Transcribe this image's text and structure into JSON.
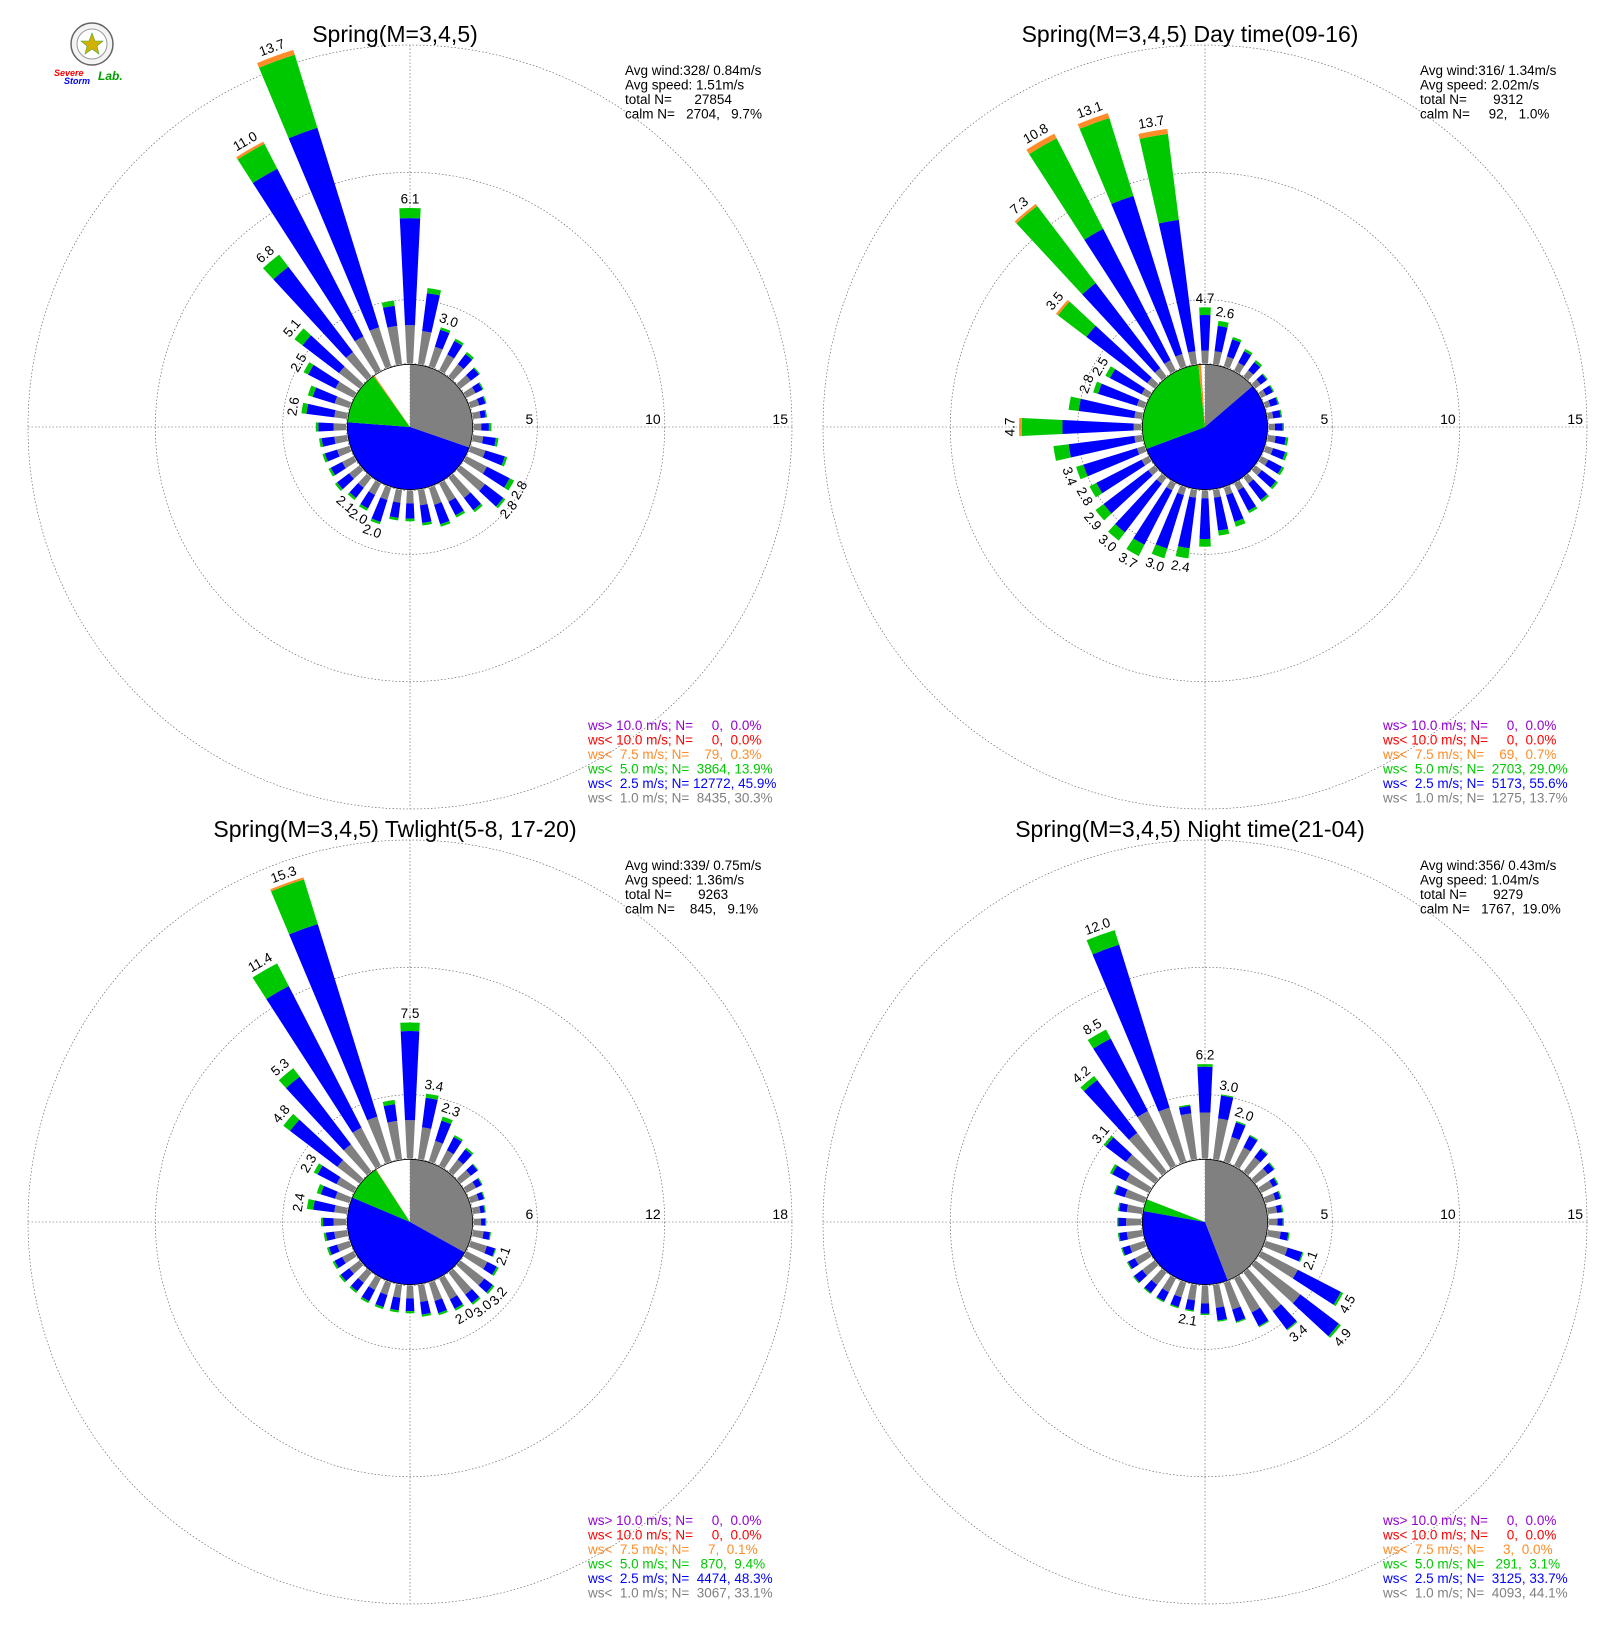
{
  "colors": {
    "gt10": "#9400d3",
    "lt10": "#ff0000",
    "lt7_5": "#ff8c29",
    "lt5": "#00c800",
    "lt2_5": "#0000ff",
    "lt1": "#808080",
    "grid": "#555555"
  },
  "logo": {
    "word1": "Severe",
    "word2": "Storm",
    "word3": "Lab."
  },
  "chart_data": [
    {
      "type": "windrose",
      "title": "Spring(M=3,4,5)",
      "stats": {
        "avg_wind": "Avg wind:328/ 0.84m/s",
        "avg_speed": "Avg speed: 1.51m/s",
        "total": "total N=      27854",
        "calm": "calm N=   2704,   9.7%"
      },
      "rings": [
        5,
        10,
        15
      ],
      "ring_labels": [
        "5",
        "10",
        "15"
      ],
      "base_radius": 2.5,
      "calm_pie": [
        {
          "cls": "lt1",
          "pct": 30.3
        },
        {
          "cls": "lt2_5",
          "pct": 45.9
        },
        {
          "cls": "lt5",
          "pct": 13.9
        },
        {
          "cls": "lt7_5",
          "pct": 0.3
        },
        {
          "cls": "lt10",
          "pct": 0.0
        },
        {
          "cls": "gt10",
          "pct": 0.0
        }
      ],
      "directions": [
        0,
        10,
        20,
        30,
        40,
        50,
        60,
        70,
        80,
        90,
        100,
        110,
        120,
        130,
        140,
        150,
        160,
        170,
        180,
        190,
        200,
        210,
        220,
        230,
        240,
        250,
        260,
        270,
        280,
        290,
        300,
        310,
        320,
        330,
        340,
        350
      ],
      "gray": [
        1.5,
        1.3,
        0.8,
        0.7,
        0.6,
        0.5,
        0.4,
        0.35,
        0.3,
        0.3,
        0.4,
        0.6,
        0.9,
        1.2,
        1.0,
        0.8,
        0.7,
        0.6,
        0.5,
        0.5,
        0.5,
        0.5,
        0.5,
        0.5,
        0.5,
        0.5,
        0.5,
        0.5,
        0.5,
        0.6,
        0.8,
        1.0,
        1.2,
        1.5,
        1.6,
        1.5
      ],
      "blue": [
        4.2,
        1.5,
        0.7,
        0.6,
        0.5,
        0.4,
        0.3,
        0.25,
        0.2,
        0.3,
        0.5,
        0.8,
        1.0,
        0.9,
        0.6,
        0.6,
        0.8,
        0.7,
        0.6,
        0.6,
        0.9,
        0.6,
        0.5,
        0.6,
        0.5,
        0.5,
        0.5,
        0.6,
        1.1,
        0.9,
        1.2,
        1.8,
        4.2,
        7.4,
        8.2,
        0.8
      ],
      "green": [
        0.4,
        0.2,
        0.1,
        0.1,
        0.1,
        0.05,
        0.05,
        0.05,
        0.05,
        0.1,
        0.1,
        0.1,
        0.2,
        0.1,
        0.1,
        0.1,
        0.1,
        0.1,
        0.1,
        0.1,
        0.1,
        0.1,
        0.1,
        0.1,
        0.1,
        0.1,
        0.1,
        0.1,
        0.2,
        0.2,
        0.2,
        0.4,
        0.6,
        1.1,
        3.0,
        0.2
      ],
      "orange": [
        0,
        0,
        0,
        0,
        0,
        0,
        0,
        0,
        0,
        0,
        0,
        0,
        0,
        0,
        0,
        0,
        0,
        0,
        0,
        0,
        0,
        0,
        0,
        0,
        0,
        0,
        0,
        0,
        0,
        0,
        0,
        0,
        0,
        0.1,
        0.2,
        0
      ],
      "bar_labels": [
        {
          "dir": 0,
          "text": "6.1"
        },
        {
          "dir": 20,
          "text": "3.0"
        },
        {
          "dir": 120,
          "text": "2.8"
        },
        {
          "dir": 130,
          "text": "2.8"
        },
        {
          "dir": 200,
          "text": "2.0"
        },
        {
          "dir": 210,
          "text": "2.0"
        },
        {
          "dir": 220,
          "text": "2.1"
        },
        {
          "dir": 280,
          "text": "2.6"
        },
        {
          "dir": 300,
          "text": "2.5"
        },
        {
          "dir": 310,
          "text": "5.1"
        },
        {
          "dir": 320,
          "text": "6.8"
        },
        {
          "dir": 330,
          "text": "11.0"
        },
        {
          "dir": 340,
          "text": "13.7"
        }
      ],
      "legend": [
        {
          "cls": "gt10",
          "text": "ws> 10.0 m/s; N=     0,  0.0%"
        },
        {
          "cls": "lt10",
          "text": "ws< 10.0 m/s; N=     0,  0.0%"
        },
        {
          "cls": "lt7_5",
          "text": "ws<  7.5 m/s; N=    79,  0.3%"
        },
        {
          "cls": "lt5",
          "text": "ws<  5.0 m/s; N=  3864, 13.9%"
        },
        {
          "cls": "lt2_5",
          "text": "ws<  2.5 m/s; N= 12772, 45.9%"
        },
        {
          "cls": "lt1",
          "text": "ws<  1.0 m/s; N=  8435, 30.3%"
        }
      ]
    },
    {
      "type": "windrose",
      "title": "Spring(M=3,4,5) Day time(09-16)",
      "stats": {
        "avg_wind": "Avg wind:316/ 1.34m/s",
        "avg_speed": "Avg speed: 2.02m/s",
        "total": "total N=       9312",
        "calm": "calm N=     92,   1.0%"
      },
      "rings": [
        5,
        10,
        15
      ],
      "ring_labels": [
        "5",
        "10",
        "15"
      ],
      "base_radius": 2.5,
      "calm_pie": [
        {
          "cls": "lt1",
          "pct": 13.7
        },
        {
          "cls": "lt2_5",
          "pct": 55.6
        },
        {
          "cls": "lt5",
          "pct": 29.0
        },
        {
          "cls": "lt7_5",
          "pct": 0.7
        },
        {
          "cls": "lt10",
          "pct": 0.0
        },
        {
          "cls": "gt10",
          "pct": 0.0
        }
      ],
      "directions": [
        0,
        10,
        20,
        30,
        40,
        50,
        60,
        70,
        80,
        90,
        100,
        110,
        120,
        130,
        140,
        150,
        160,
        170,
        180,
        190,
        200,
        210,
        220,
        230,
        240,
        250,
        260,
        270,
        280,
        290,
        300,
        310,
        320,
        330,
        340,
        350
      ],
      "gray": [
        0.5,
        0.5,
        0.4,
        0.35,
        0.3,
        0.25,
        0.2,
        0.2,
        0.2,
        0.25,
        0.3,
        0.3,
        0.3,
        0.3,
        0.3,
        0.3,
        0.3,
        0.3,
        0.3,
        0.3,
        0.3,
        0.3,
        0.3,
        0.3,
        0.3,
        0.3,
        0.3,
        0.3,
        0.3,
        0.3,
        0.3,
        0.35,
        0.4,
        0.45,
        0.5,
        0.5
      ],
      "blue": [
        1.4,
        1.0,
        0.7,
        0.5,
        0.4,
        0.3,
        0.3,
        0.3,
        0.3,
        0.3,
        0.4,
        0.5,
        0.6,
        0.7,
        0.8,
        0.9,
        1.1,
        1.3,
        1.6,
        2.0,
        2.2,
        2.4,
        2.4,
        2.2,
        2.0,
        2.2,
        2.6,
        2.8,
        2.2,
        1.6,
        1.4,
        3.0,
        4.2,
        5.8,
        6.5,
        5.2
      ],
      "green": [
        0.3,
        0.2,
        0.1,
        0.1,
        0.1,
        0.05,
        0.05,
        0.05,
        0.05,
        0.05,
        0.1,
        0.1,
        0.1,
        0.1,
        0.1,
        0.1,
        0.2,
        0.2,
        0.3,
        0.4,
        0.4,
        0.5,
        0.4,
        0.4,
        0.3,
        0.3,
        0.6,
        1.6,
        0.4,
        0.2,
        0.2,
        1.4,
        3.8,
        4.0,
        3.2,
        3.4
      ],
      "orange": [
        0,
        0,
        0,
        0,
        0,
        0,
        0,
        0,
        0,
        0,
        0,
        0,
        0,
        0,
        0,
        0,
        0,
        0,
        0,
        0,
        0,
        0,
        0,
        0,
        0,
        0,
        0,
        0.1,
        0,
        0,
        0,
        0.1,
        0.1,
        0.2,
        0.2,
        0.2
      ],
      "bar_labels": [
        {
          "dir": 0,
          "text": "4.7"
        },
        {
          "dir": 10,
          "text": "2.6"
        },
        {
          "dir": 190,
          "text": "2.4"
        },
        {
          "dir": 200,
          "text": "3.0"
        },
        {
          "dir": 210,
          "text": "3.7"
        },
        {
          "dir": 220,
          "text": "3.0"
        },
        {
          "dir": 230,
          "text": "2.9"
        },
        {
          "dir": 240,
          "text": "2.8"
        },
        {
          "dir": 250,
          "text": "3.4"
        },
        {
          "dir": 270,
          "text": "4.7"
        },
        {
          "dir": 290,
          "text": "2.8"
        },
        {
          "dir": 300,
          "text": "2.5"
        },
        {
          "dir": 310,
          "text": "3.5"
        },
        {
          "dir": 320,
          "text": "7.3"
        },
        {
          "dir": 330,
          "text": "10.8"
        },
        {
          "dir": 340,
          "text": "13.1"
        },
        {
          "dir": 350,
          "text": "13.7"
        }
      ],
      "legend": [
        {
          "cls": "gt10",
          "text": "ws> 10.0 m/s; N=     0,  0.0%"
        },
        {
          "cls": "lt10",
          "text": "ws< 10.0 m/s; N=     0,  0.0%"
        },
        {
          "cls": "lt7_5",
          "text": "ws<  7.5 m/s; N=    69,  0.7%"
        },
        {
          "cls": "lt5",
          "text": "ws<  5.0 m/s; N=  2703, 29.0%"
        },
        {
          "cls": "lt2_5",
          "text": "ws<  2.5 m/s; N=  5173, 55.6%"
        },
        {
          "cls": "lt1",
          "text": "ws<  1.0 m/s; N=  1275, 13.7%"
        }
      ]
    },
    {
      "type": "windrose",
      "title": "Spring(M=3,4,5) Twlight(5-8, 17-20)",
      "stats": {
        "avg_wind": "Avg wind:339/ 0.75m/s",
        "avg_speed": "Avg speed: 1.36m/s",
        "total": "total N=       9263",
        "calm": "calm N=    845,   9.1%"
      },
      "rings": [
        6,
        12,
        18
      ],
      "ring_labels": [
        "6",
        "12",
        "18"
      ],
      "base_radius": 3,
      "calm_pie": [
        {
          "cls": "lt1",
          "pct": 33.1
        },
        {
          "cls": "lt2_5",
          "pct": 48.3
        },
        {
          "cls": "lt5",
          "pct": 9.4
        },
        {
          "cls": "lt7_5",
          "pct": 0.1
        },
        {
          "cls": "lt10",
          "pct": 0.0
        },
        {
          "cls": "gt10",
          "pct": 0.0
        }
      ],
      "directions": [
        0,
        10,
        20,
        30,
        40,
        50,
        60,
        70,
        80,
        90,
        100,
        110,
        120,
        130,
        140,
        150,
        160,
        170,
        180,
        190,
        200,
        210,
        220,
        230,
        240,
        250,
        260,
        270,
        280,
        290,
        300,
        310,
        320,
        330,
        340,
        350
      ],
      "gray": [
        1.8,
        1.5,
        1.0,
        0.8,
        0.7,
        0.6,
        0.5,
        0.4,
        0.35,
        0.35,
        0.5,
        0.8,
        1.1,
        1.4,
        1.3,
        1.1,
        0.9,
        0.8,
        0.6,
        0.6,
        0.6,
        0.6,
        0.6,
        0.6,
        0.6,
        0.6,
        0.6,
        0.6,
        0.6,
        0.7,
        0.9,
        1.3,
        1.6,
        2.0,
        2.2,
        1.8
      ],
      "blue": [
        4.2,
        1.4,
        1.0,
        0.7,
        0.6,
        0.4,
        0.3,
        0.25,
        0.2,
        0.2,
        0.3,
        0.4,
        0.5,
        0.5,
        0.5,
        0.5,
        0.6,
        0.6,
        0.6,
        0.6,
        0.6,
        0.6,
        0.5,
        0.5,
        0.4,
        0.4,
        0.4,
        0.5,
        1.0,
        0.7,
        1.0,
        2.8,
        4.0,
        7.5,
        9.5,
        0.8
      ],
      "green": [
        0.4,
        0.2,
        0.2,
        0.1,
        0.1,
        0.05,
        0.05,
        0.05,
        0.05,
        0.05,
        0.05,
        0.05,
        0.1,
        0.1,
        0.1,
        0.1,
        0.1,
        0.1,
        0.1,
        0.1,
        0.1,
        0.1,
        0.1,
        0.1,
        0.1,
        0.1,
        0.1,
        0.1,
        0.3,
        0.2,
        0.2,
        0.4,
        0.5,
        1.2,
        2.2,
        0.2
      ],
      "orange": [
        0,
        0,
        0,
        0,
        0,
        0,
        0,
        0,
        0,
        0,
        0,
        0,
        0,
        0,
        0,
        0,
        0,
        0,
        0,
        0,
        0,
        0,
        0,
        0,
        0,
        0,
        0,
        0,
        0,
        0,
        0,
        0,
        0,
        0,
        0.1,
        0
      ],
      "bar_labels": [
        {
          "dir": 0,
          "text": "7.5"
        },
        {
          "dir": 10,
          "text": "3.4"
        },
        {
          "dir": 20,
          "text": "2.3"
        },
        {
          "dir": 110,
          "text": "2.1"
        },
        {
          "dir": 130,
          "text": "3.2"
        },
        {
          "dir": 140,
          "text": "3.0"
        },
        {
          "dir": 150,
          "text": "2.0"
        },
        {
          "dir": 280,
          "text": "2.4"
        },
        {
          "dir": 300,
          "text": "2.3"
        },
        {
          "dir": 310,
          "text": "4.8"
        },
        {
          "dir": 320,
          "text": "5.3"
        },
        {
          "dir": 330,
          "text": "11.4"
        },
        {
          "dir": 340,
          "text": "15.3"
        }
      ],
      "legend": [
        {
          "cls": "gt10",
          "text": "ws> 10.0 m/s; N=     0,  0.0%"
        },
        {
          "cls": "lt10",
          "text": "ws< 10.0 m/s; N=     0,  0.0%"
        },
        {
          "cls": "lt7_5",
          "text": "ws<  7.5 m/s; N=     7,  0.1%"
        },
        {
          "cls": "lt5",
          "text": "ws<  5.0 m/s; N=   870,  9.4%"
        },
        {
          "cls": "lt2_5",
          "text": "ws<  2.5 m/s; N=  4474, 48.3%"
        },
        {
          "cls": "lt1",
          "text": "ws<  1.0 m/s; N=  3067, 33.1%"
        }
      ]
    },
    {
      "type": "windrose",
      "title": "Spring(M=3,4,5) Night time(21-04)",
      "stats": {
        "avg_wind": "Avg wind:356/ 0.43m/s",
        "avg_speed": "Avg speed: 1.04m/s",
        "total": "total N=       9279",
        "calm": "calm N=   1767,  19.0%"
      },
      "rings": [
        5,
        10,
        15
      ],
      "ring_labels": [
        "5",
        "10",
        "15"
      ],
      "base_radius": 2.5,
      "calm_pie": [
        {
          "cls": "lt1",
          "pct": 44.1
        },
        {
          "cls": "lt2_5",
          "pct": 33.7
        },
        {
          "cls": "lt5",
          "pct": 3.1
        },
        {
          "cls": "lt7_5",
          "pct": 0.0
        },
        {
          "cls": "lt10",
          "pct": 0.0
        },
        {
          "cls": "gt10",
          "pct": 0.0
        }
      ],
      "directions": [
        0,
        10,
        20,
        30,
        40,
        50,
        60,
        70,
        80,
        90,
        100,
        110,
        120,
        130,
        140,
        150,
        160,
        170,
        180,
        190,
        200,
        210,
        220,
        230,
        240,
        250,
        260,
        270,
        280,
        290,
        300,
        310,
        320,
        330,
        340,
        350
      ],
      "gray": [
        1.8,
        1.6,
        1.0,
        0.8,
        0.7,
        0.6,
        0.5,
        0.4,
        0.35,
        0.35,
        0.5,
        0.9,
        1.6,
        2.2,
        1.9,
        1.5,
        1.1,
        0.9,
        0.7,
        0.6,
        0.6,
        0.6,
        0.6,
        0.6,
        0.6,
        0.6,
        0.6,
        0.6,
        0.6,
        0.8,
        1.0,
        1.4,
        1.9,
        2.4,
        2.2,
        1.8
      ],
      "blue": [
        1.8,
        0.9,
        0.6,
        0.5,
        0.4,
        0.3,
        0.2,
        0.2,
        0.2,
        0.2,
        0.3,
        0.6,
        1.9,
        1.9,
        0.9,
        0.6,
        0.5,
        0.5,
        0.4,
        0.4,
        0.4,
        0.4,
        0.4,
        0.4,
        0.3,
        0.3,
        0.3,
        0.3,
        0.3,
        0.4,
        0.6,
        1.0,
        2.6,
        3.2,
        6.7,
        0.3
      ],
      "green": [
        0.1,
        0.05,
        0.05,
        0.05,
        0.05,
        0.05,
        0.05,
        0.05,
        0.05,
        0.05,
        0.05,
        0.05,
        0.1,
        0.1,
        0.05,
        0.05,
        0.05,
        0.05,
        0.05,
        0.05,
        0.05,
        0.05,
        0.05,
        0.05,
        0.05,
        0.05,
        0.05,
        0.05,
        0.05,
        0.05,
        0.1,
        0.1,
        0.2,
        0.4,
        0.6,
        0.05
      ],
      "orange": [
        0,
        0,
        0,
        0,
        0,
        0,
        0,
        0,
        0,
        0,
        0,
        0,
        0,
        0,
        0,
        0,
        0,
        0,
        0,
        0,
        0,
        0,
        0,
        0,
        0,
        0,
        0,
        0,
        0,
        0,
        0,
        0,
        0,
        0,
        0,
        0
      ],
      "bar_labels": [
        {
          "dir": 0,
          "text": "6.2"
        },
        {
          "dir": 10,
          "text": "3.0"
        },
        {
          "dir": 20,
          "text": "2.0"
        },
        {
          "dir": 110,
          "text": "2.1"
        },
        {
          "dir": 120,
          "text": "4.5"
        },
        {
          "dir": 130,
          "text": "4.9"
        },
        {
          "dir": 140,
          "text": "3.4"
        },
        {
          "dir": 190,
          "text": "2.1"
        },
        {
          "dir": 310,
          "text": "3.1"
        },
        {
          "dir": 320,
          "text": "4.2"
        },
        {
          "dir": 330,
          "text": "8.5"
        },
        {
          "dir": 340,
          "text": "12.0"
        }
      ],
      "legend": [
        {
          "cls": "gt10",
          "text": "ws> 10.0 m/s; N=     0,  0.0%"
        },
        {
          "cls": "lt10",
          "text": "ws< 10.0 m/s; N=     0,  0.0%"
        },
        {
          "cls": "lt7_5",
          "text": "ws<  7.5 m/s; N=     3,  0.0%"
        },
        {
          "cls": "lt5",
          "text": "ws<  5.0 m/s; N=   291,  3.1%"
        },
        {
          "cls": "lt2_5",
          "text": "ws<  2.5 m/s; N=  3125, 33.7%"
        },
        {
          "cls": "lt1",
          "text": "ws<  1.0 m/s; N=  4093, 44.1%"
        }
      ]
    }
  ]
}
